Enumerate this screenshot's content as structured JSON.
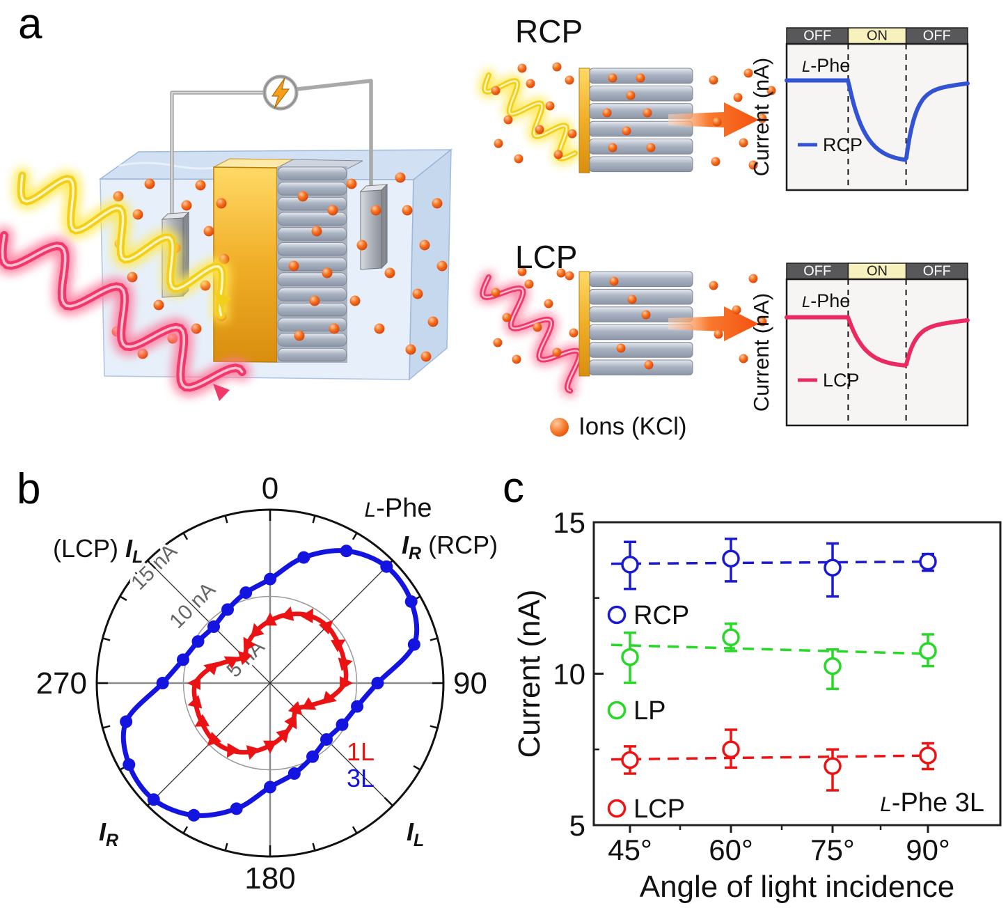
{
  "panels": {
    "a": {
      "label": "a",
      "rcp_label": "RCP",
      "lcp_label": "LCP",
      "ions_legend": "Ions (KCl)"
    },
    "b": {
      "label": "b"
    },
    "c": {
      "label": "c"
    }
  },
  "colors": {
    "ion_orange": "#f4591a",
    "gold": "#e8a01c",
    "membrane_gray": "#9aa3b2",
    "water_blue": "#d3e2f4",
    "band_off": "#58585a",
    "band_on": "#f6f1bd"
  },
  "chart_data": [
    {
      "id": "panel-a-rcp-chart",
      "type": "line",
      "x_bands": [
        "OFF",
        "ON",
        "OFF"
      ],
      "band_fractions": [
        0,
        0.34,
        0.66,
        1
      ],
      "ylabel": "Current (nA)",
      "annotation": "L-Phe",
      "legend": "RCP",
      "series": [
        {
          "name": "RCP",
          "color": "#3253d3",
          "baseline_frac": 0.25,
          "dip_frac": 0.81,
          "end_frac": 0.27
        }
      ]
    },
    {
      "id": "panel-a-lcp-chart",
      "type": "line",
      "x_bands": [
        "OFF",
        "ON",
        "OFF"
      ],
      "band_fractions": [
        0,
        0.34,
        0.66,
        1
      ],
      "ylabel": "Current (nA)",
      "annotation": "L-Phe",
      "legend": "LCP",
      "series": [
        {
          "name": "LCP",
          "color": "#eb2a62",
          "baseline_frac": 0.26,
          "dip_frac": 0.6,
          "end_frac": 0.28
        }
      ]
    },
    {
      "id": "panel-b-polar",
      "type": "line",
      "polar": true,
      "title": "L-Phe",
      "units": "nA",
      "radial_range_nA": [
        5,
        15
      ],
      "radial_tick_labels": [
        "5 nA",
        "10 nA",
        "15 nA"
      ],
      "angle_labels": {
        "top": "0",
        "right": "90",
        "bottom": "180",
        "left": "270"
      },
      "corner_labels": [
        {
          "pos": "top-left",
          "prefix": "(LCP) ",
          "sym": "I",
          "sub": "L",
          "suffix": ""
        },
        {
          "pos": "top-right",
          "prefix": "",
          "sym": "I",
          "sub": "R",
          "suffix": "  (RCP)"
        },
        {
          "pos": "bottom-left",
          "prefix": "",
          "sym": "I",
          "sub": "R",
          "suffix": ""
        },
        {
          "pos": "bottom-right",
          "prefix": "",
          "sym": "I",
          "sub": "L",
          "suffix": ""
        }
      ],
      "series": [
        {
          "name": "1L",
          "color": "#ea1212",
          "marker": "triangle",
          "angles_deg": [
            0,
            15,
            30,
            45,
            60,
            75,
            90,
            105,
            120,
            135,
            150,
            165,
            180,
            195,
            210,
            225,
            240,
            255,
            270,
            285,
            300,
            315,
            330,
            345
          ],
          "values_nA": [
            8.6,
            9.1,
            9.5,
            9.65,
            9.55,
            9.45,
            9.3,
            8.5,
            7.6,
            7.15,
            7.6,
            8.1,
            8.6,
            9.1,
            9.5,
            9.65,
            9.55,
            9.45,
            9.3,
            8.5,
            7.6,
            7.15,
            7.6,
            8.1
          ]
        },
        {
          "name": "3L",
          "color": "#1414e0",
          "marker": "circle",
          "angles_deg": [
            0,
            15,
            30,
            45,
            60,
            75,
            90,
            105,
            120,
            135,
            150,
            165,
            180,
            195,
            210,
            225,
            240,
            255,
            270,
            285,
            300,
            315,
            330,
            345
          ],
          "values_nA": [
            11.0,
            12.5,
            13.8,
            14.5,
            14.4,
            13.6,
            11.2,
            10.2,
            9.8,
            9.6,
            9.9,
            10.4,
            11.0,
            12.5,
            13.8,
            14.5,
            14.4,
            13.6,
            11.2,
            10.2,
            9.8,
            9.6,
            9.9,
            10.4
          ]
        }
      ]
    },
    {
      "id": "panel-c-scatter",
      "type": "scatter",
      "xlabel": "Angle of light incidence",
      "ylabel": "Current (nA)",
      "annotation": "L-Phe 3L",
      "x_values": [
        45,
        60,
        75,
        90
      ],
      "x_tick_labels": [
        "45°",
        "60°",
        "75°",
        "90°"
      ],
      "ylim": [
        5,
        15
      ],
      "y_ticks": [
        5,
        10,
        15
      ],
      "y_tick_labels": [
        "5",
        "10",
        "15"
      ],
      "series": [
        {
          "name": "RCP",
          "color": "#1a1ad0",
          "values": [
            13.6,
            13.8,
            13.5,
            13.7
          ],
          "err_up": [
            0.75,
            0.65,
            0.8,
            0.25
          ],
          "err_down": [
            0.8,
            0.75,
            0.95,
            0.3
          ],
          "trend": [
            13.63,
            13.7
          ]
        },
        {
          "name": "LP",
          "color": "#27d827",
          "values": [
            10.55,
            11.2,
            10.25,
            10.75
          ],
          "err_up": [
            0.8,
            0.45,
            0.55,
            0.55
          ],
          "err_down": [
            0.85,
            0.45,
            0.75,
            0.5
          ],
          "trend": [
            10.95,
            10.65
          ]
        },
        {
          "name": "LCP",
          "color": "#ee1212",
          "values": [
            7.15,
            7.5,
            6.95,
            7.3
          ],
          "err_up": [
            0.45,
            0.65,
            0.55,
            0.4
          ],
          "err_down": [
            0.45,
            0.6,
            0.8,
            0.45
          ],
          "trend": [
            7.17,
            7.3
          ]
        }
      ]
    }
  ]
}
